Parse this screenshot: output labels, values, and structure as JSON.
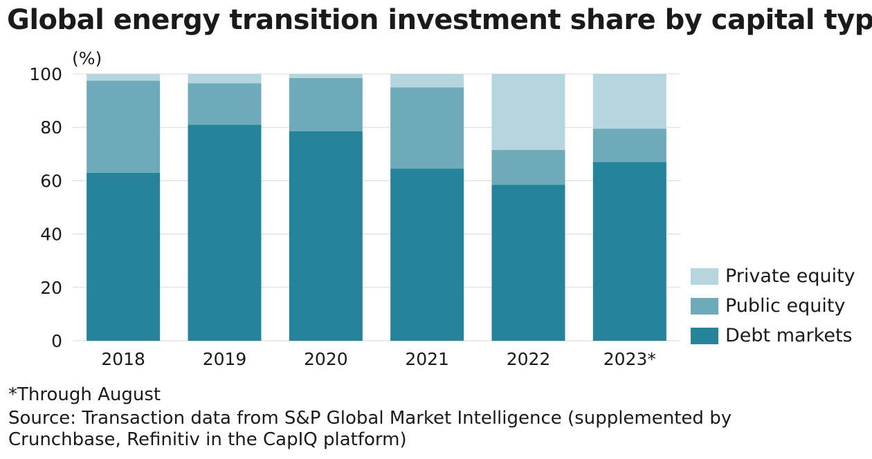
{
  "chart_data": {
    "type": "bar",
    "stacked": true,
    "title": "Global energy transition investment share by capital type",
    "ylabel": "(%)",
    "ylim": [
      0,
      100
    ],
    "yticks": [
      0,
      20,
      40,
      60,
      80,
      100
    ],
    "grid": true,
    "legend_position": "right",
    "categories": [
      "2018",
      "2019",
      "2020",
      "2021",
      "2022",
      "2023*"
    ],
    "series": [
      {
        "name": "Debt markets",
        "color": "#25839A",
        "values": [
          63,
          81,
          78.5,
          64.5,
          58.5,
          67
        ]
      },
      {
        "name": "Public equity",
        "color": "#6EAABA",
        "values": [
          34.5,
          15.5,
          20,
          30.5,
          13,
          12.5
        ]
      },
      {
        "name": "Private equity",
        "color": "#B5D6DE",
        "values": [
          2.5,
          3.5,
          1.5,
          5,
          28.5,
          20.5
        ]
      }
    ],
    "legend_order": [
      "Private equity",
      "Public equity",
      "Debt markets"
    ]
  },
  "notes": {
    "footnote": "*Through August",
    "source": "Source: Transaction data from S&P Global Market Intelligence (supplemented by Crunchbase, Refinitiv in the CapIQ platform)"
  }
}
